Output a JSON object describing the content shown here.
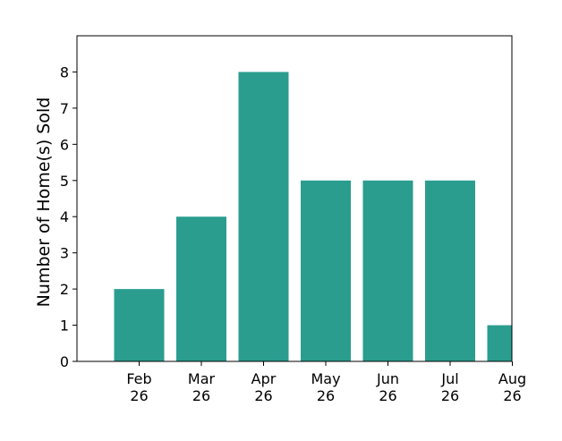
{
  "chart_data": {
    "type": "bar",
    "categories": [
      [
        "Feb",
        "26"
      ],
      [
        "Mar",
        "26"
      ],
      [
        "Apr",
        "26"
      ],
      [
        "May",
        "26"
      ],
      [
        "Jun",
        "26"
      ],
      [
        "Jul",
        "26"
      ],
      [
        "Aug",
        "26"
      ]
    ],
    "values": [
      2,
      4,
      8,
      5,
      5,
      5,
      1
    ],
    "title": "",
    "xlabel": "",
    "ylabel": "Number of Home(s) Sold",
    "ylim": [
      0,
      9
    ],
    "yticks": [
      0,
      1,
      2,
      3,
      4,
      5,
      6,
      7,
      8
    ],
    "bar_color": "#2a9d8f",
    "grid": false,
    "legend": "none"
  }
}
